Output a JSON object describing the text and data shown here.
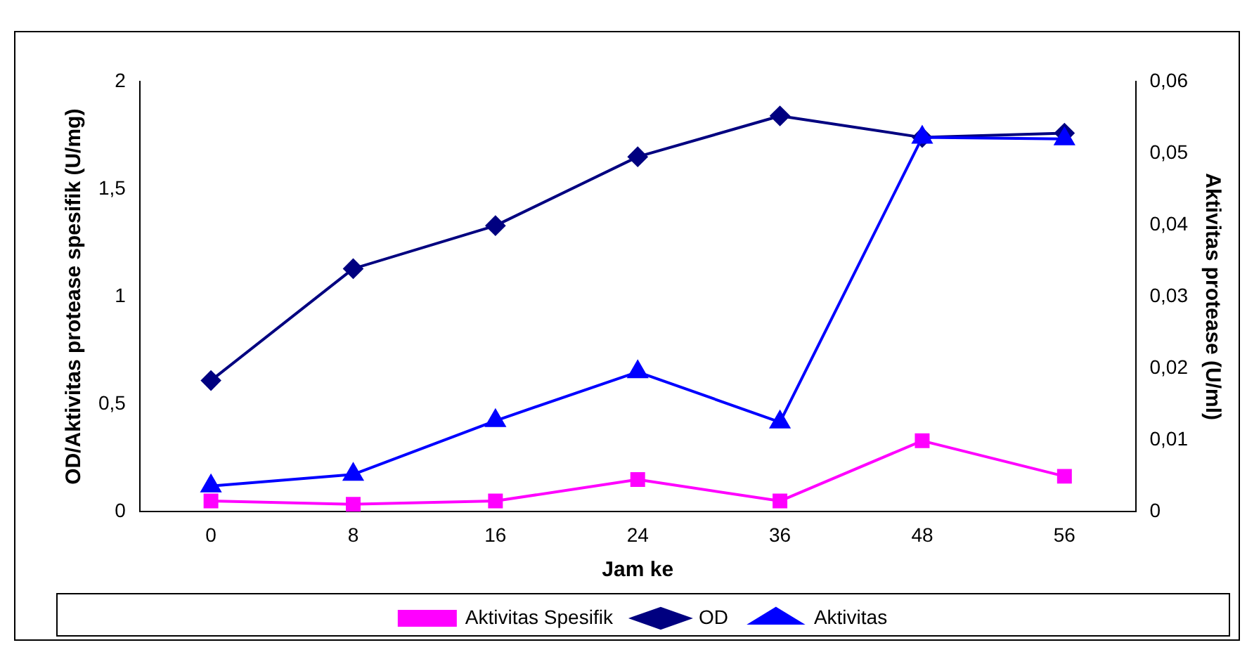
{
  "chart_data": {
    "type": "line",
    "xlabel": "Jam ke",
    "ylabel": "OD/Aktivitas protease spesifik (U/mg)",
    "y2label": "Aktivitas protease (U/ml)",
    "categories": [
      "0",
      "8",
      "16",
      "24",
      "36",
      "48",
      "56"
    ],
    "series": [
      {
        "name": "Aktivitas Spesifik",
        "color": "#ff00ff",
        "marker": "square",
        "values": [
          0.05,
          0.035,
          0.05,
          0.15,
          0.05,
          0.33,
          0.165
        ]
      },
      {
        "name": "OD",
        "color": "#000080",
        "marker": "diamond",
        "values": [
          0.61,
          1.13,
          1.33,
          1.65,
          1.84,
          1.74,
          1.76
        ]
      },
      {
        "name": "Aktivitas",
        "color": "#0000ff",
        "marker": "triangle",
        "axis": "y2",
        "values": [
          0.0036,
          0.0052,
          0.0127,
          0.0195,
          0.0125,
          0.0522,
          0.052
        ]
      }
    ],
    "ylim": [
      0,
      2
    ],
    "yticks": [
      {
        "value": 0,
        "label": "0"
      },
      {
        "value": 0.5,
        "label": "0,5"
      },
      {
        "value": 1,
        "label": "1"
      },
      {
        "value": 1.5,
        "label": "1,5"
      },
      {
        "value": 2,
        "label": "2"
      }
    ],
    "y2lim": [
      0,
      0.06
    ],
    "y2ticks": [
      {
        "value": 0,
        "label": "0"
      },
      {
        "value": 0.01,
        "label": "0,01"
      },
      {
        "value": 0.02,
        "label": "0,02"
      },
      {
        "value": 0.03,
        "label": "0,03"
      },
      {
        "value": 0.04,
        "label": "0,04"
      },
      {
        "value": 0.05,
        "label": "0,05"
      },
      {
        "value": 0.06,
        "label": "0,06"
      }
    ],
    "grid": false,
    "legend": "bottom",
    "line_style": "solid"
  }
}
